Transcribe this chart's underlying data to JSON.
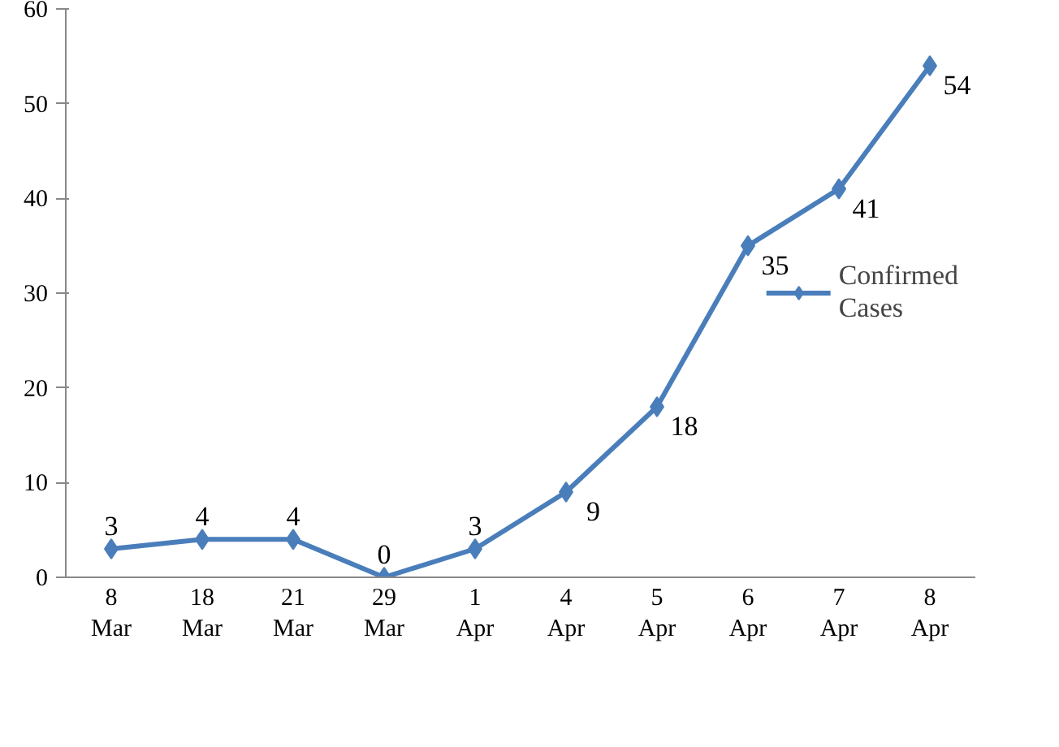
{
  "chart_data": {
    "type": "line",
    "categories": [
      "8 Mar",
      "18 Mar",
      "21 Mar",
      "29 Mar",
      "1 Apr",
      "4 Apr",
      "5 Apr",
      "6 Apr",
      "7 Apr",
      "8 Apr"
    ],
    "series": [
      {
        "name": "Confirmed Cases",
        "color": "#4a7ebb",
        "values": [
          3,
          4,
          4,
          0,
          3,
          9,
          18,
          35,
          41,
          54
        ]
      }
    ],
    "ylim": [
      0,
      60
    ],
    "yticks": [
      0,
      10,
      20,
      30,
      40,
      50,
      60
    ],
    "grid": false,
    "legend": "right",
    "marker": "diamond",
    "line_style": "solid",
    "data_labels": true
  }
}
